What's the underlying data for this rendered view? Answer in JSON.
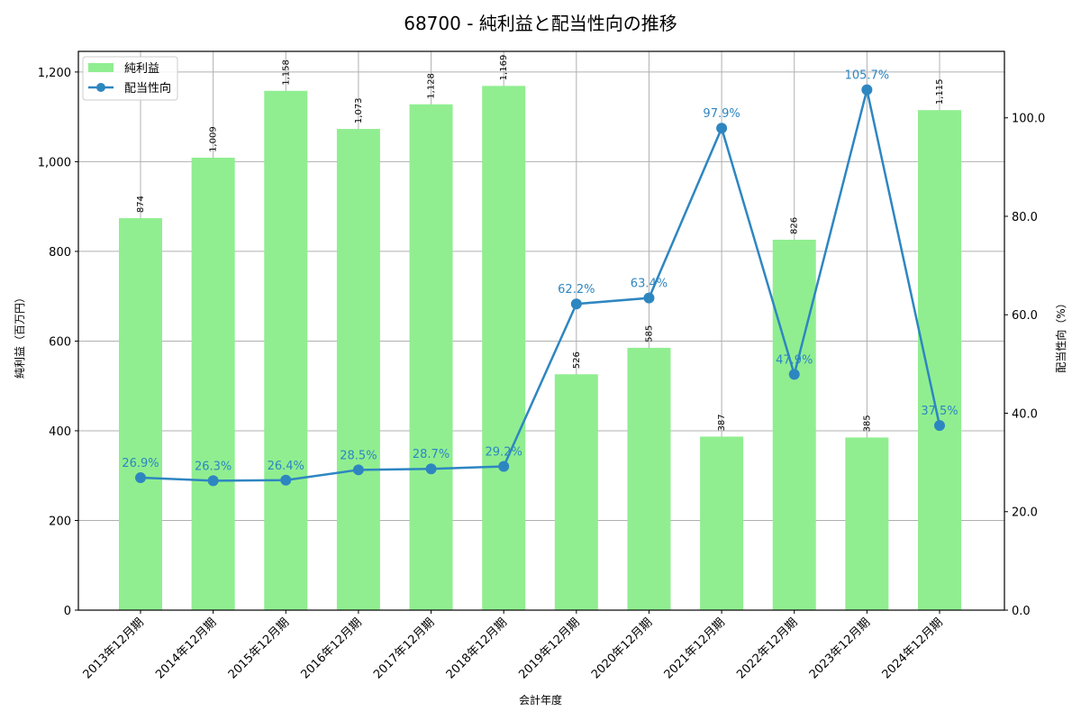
{
  "chart_data": {
    "type": "bar+line",
    "title": "68700 - 純利益と配当性向の推移",
    "xlabel": "会計年度",
    "ylabel_left": "純利益（百万円）",
    "ylabel_right": "配当性向（%）",
    "categories": [
      "2013年12月期",
      "2014年12月期",
      "2015年12月期",
      "2016年12月期",
      "2017年12月期",
      "2018年12月期",
      "2019年12月期",
      "2020年12月期",
      "2021年12月期",
      "2022年12月期",
      "2023年12月期",
      "2024年12月期"
    ],
    "series": [
      {
        "name": "純利益",
        "type": "bar",
        "axis": "left",
        "color": "#90ee90",
        "values": [
          874,
          1009,
          1158,
          1073,
          1128,
          1169,
          526,
          585,
          387,
          826,
          385,
          1115
        ],
        "labels": [
          "874",
          "1,009",
          "1,158",
          "1,073",
          "1,128",
          "1,169",
          "526",
          "585",
          "387",
          "826",
          "385",
          "1,115"
        ]
      },
      {
        "name": "配当性向",
        "type": "line",
        "axis": "right",
        "color": "#2e86c1",
        "values": [
          26.9,
          26.3,
          26.4,
          28.5,
          28.7,
          29.2,
          62.2,
          63.4,
          97.9,
          47.9,
          105.7,
          37.5
        ],
        "labels": [
          "26.9%",
          "26.3%",
          "26.4%",
          "28.5%",
          "28.7%",
          "29.2%",
          "62.2%",
          "63.4%",
          "97.9%",
          "47.9%",
          "105.7%",
          "37.5%"
        ]
      }
    ],
    "ylim_left": [
      0,
      1246
    ],
    "ylim_right": [
      0,
      113.5
    ],
    "yticks_left": [
      "0",
      "200",
      "400",
      "600",
      "800",
      "1,000",
      "1,200"
    ],
    "yticks_left_values": [
      0,
      200,
      400,
      600,
      800,
      1000,
      1200
    ],
    "yticks_right": [
      "0.0",
      "20.0",
      "40.0",
      "60.0",
      "80.0",
      "100.0"
    ],
    "yticks_right_values": [
      0,
      20,
      40,
      60,
      80,
      100
    ],
    "grid": true,
    "legend_position": "upper left"
  }
}
